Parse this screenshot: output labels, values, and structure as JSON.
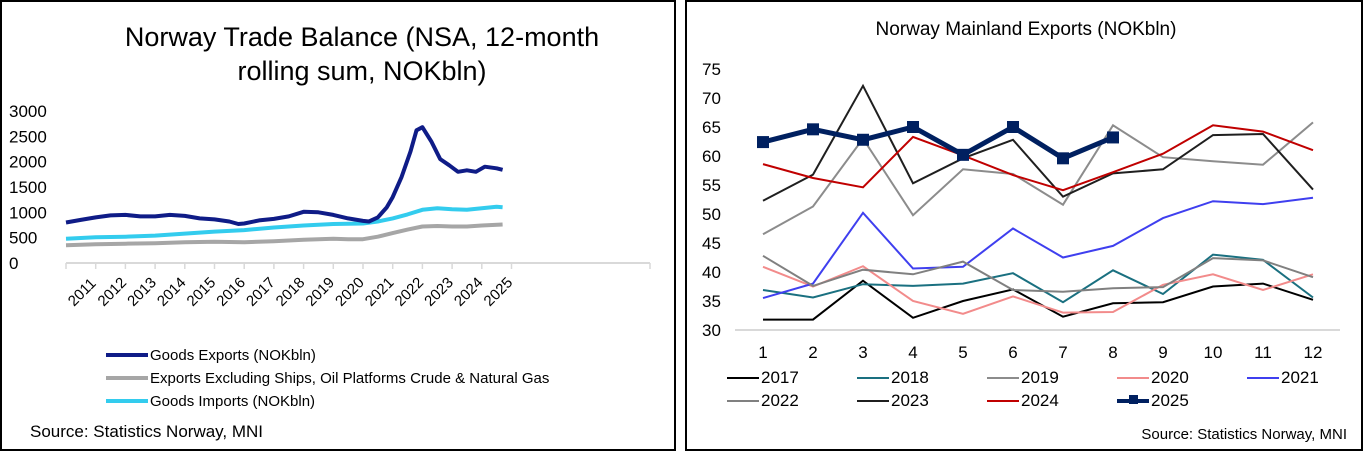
{
  "chart_data": [
    {
      "type": "line",
      "title": "Norway Trade Balance (NSA, 12-month rolling sum, NOKbln)",
      "title_lines": [
        "Norway Trade Balance (NSA, 12-month",
        "rolling sum, NOKbln)"
      ],
      "xlabel": "",
      "ylabel": "",
      "ylim": [
        0,
        3000
      ],
      "yticks": [
        0,
        500,
        1000,
        1500,
        2000,
        2500,
        3000
      ],
      "xlim": [
        2011,
        2026.1
      ],
      "xticks": [
        "2011",
        "2012",
        "2013",
        "2014",
        "2015",
        "2016",
        "2017",
        "2018",
        "2019",
        "2020",
        "2021",
        "2022",
        "2023",
        "2024",
        "2025"
      ],
      "grid": false,
      "legend_position": "bottom",
      "series": [
        {
          "name": "Goods Exports (NOKbln)",
          "color": "#0F1C87",
          "x": [
            2011.0,
            2011.5,
            2012.0,
            2012.5,
            2013.0,
            2013.5,
            2014.0,
            2014.5,
            2015.0,
            2015.5,
            2016.0,
            2016.5,
            2016.8,
            2017.0,
            2017.5,
            2018.0,
            2018.5,
            2019.0,
            2019.5,
            2020.0,
            2020.5,
            2021.0,
            2021.2,
            2021.5,
            2021.8,
            2022.0,
            2022.3,
            2022.6,
            2022.8,
            2023.0,
            2023.3,
            2023.6,
            2023.9,
            2024.2,
            2024.5,
            2024.8,
            2025.1,
            2025.5,
            2025.7
          ],
          "values": [
            800,
            850,
            900,
            940,
            950,
            920,
            920,
            950,
            930,
            880,
            860,
            820,
            770,
            780,
            840,
            870,
            920,
            1010,
            1000,
            950,
            880,
            830,
            820,
            900,
            1100,
            1300,
            1700,
            2200,
            2620,
            2680,
            2400,
            2050,
            1930,
            1800,
            1830,
            1800,
            1900,
            1870,
            1840
          ]
        },
        {
          "name": "Exports Excluding Ships, Oil Platforms Crude & Natural Gas",
          "color": "#A6A6A6",
          "x": [
            2011.0,
            2012.0,
            2013.0,
            2014.0,
            2015.0,
            2016.0,
            2017.0,
            2018.0,
            2019.0,
            2020.0,
            2020.5,
            2021.0,
            2021.5,
            2022.0,
            2022.5,
            2023.0,
            2023.5,
            2024.0,
            2024.5,
            2025.0,
            2025.7
          ],
          "values": [
            350,
            370,
            380,
            390,
            410,
            420,
            410,
            430,
            460,
            480,
            470,
            470,
            520,
            590,
            660,
            720,
            730,
            720,
            720,
            740,
            760
          ]
        },
        {
          "name": "Goods Imports (NOKbln)",
          "color": "#33CCEE",
          "x": [
            2011.0,
            2012.0,
            2013.0,
            2014.0,
            2015.0,
            2016.0,
            2017.0,
            2018.0,
            2019.0,
            2020.0,
            2021.0,
            2021.5,
            2022.0,
            2022.5,
            2023.0,
            2023.5,
            2024.0,
            2024.5,
            2025.0,
            2025.5,
            2025.7
          ],
          "values": [
            480,
            510,
            520,
            540,
            580,
            620,
            650,
            700,
            740,
            770,
            780,
            820,
            880,
            960,
            1050,
            1080,
            1060,
            1050,
            1080,
            1110,
            1100
          ]
        }
      ],
      "source": "Source: Statistics Norway, MNI"
    },
    {
      "type": "line",
      "title": "Norway Mainland Exports (NOKbln)",
      "xlabel": "",
      "ylabel": "",
      "ylim": [
        30,
        75
      ],
      "yticks": [
        30,
        35,
        40,
        45,
        50,
        55,
        60,
        65,
        70,
        75
      ],
      "categories": [
        "1",
        "2",
        "3",
        "4",
        "5",
        "6",
        "7",
        "8",
        "9",
        "10",
        "11",
        "12"
      ],
      "grid": false,
      "legend_position": "bottom",
      "series": [
        {
          "name": "2017",
          "color": "#000000",
          "width": 2,
          "values": [
            31.8,
            31.8,
            38.5,
            32.1,
            35.0,
            37.0,
            32.3,
            34.6,
            34.8,
            37.5,
            38.0,
            35.2
          ]
        },
        {
          "name": "2018",
          "color": "#1A7080",
          "width": 2,
          "values": [
            36.9,
            35.6,
            37.9,
            37.6,
            38.0,
            39.8,
            34.8,
            40.3,
            36.2,
            43.0,
            42.1,
            35.6
          ]
        },
        {
          "name": "2019",
          "color": "#8C8C8C",
          "width": 2,
          "values": [
            46.5,
            51.3,
            63.0,
            49.8,
            57.7,
            56.9,
            51.6,
            65.3,
            59.8,
            59.1,
            58.5,
            65.8
          ]
        },
        {
          "name": "2020",
          "color": "#F28B8B",
          "width": 2,
          "values": [
            40.9,
            37.5,
            41.0,
            35.0,
            32.8,
            35.8,
            33.0,
            33.1,
            37.8,
            39.6,
            36.9,
            39.6
          ]
        },
        {
          "name": "2021",
          "color": "#3F3FEF",
          "width": 2,
          "values": [
            35.5,
            38.0,
            50.2,
            40.6,
            40.9,
            47.5,
            42.5,
            44.5,
            49.3,
            52.2,
            51.7,
            52.8
          ]
        },
        {
          "name": "2022",
          "color": "#808080",
          "width": 2,
          "values": [
            42.8,
            37.6,
            40.4,
            39.6,
            41.8,
            36.9,
            36.6,
            37.2,
            37.4,
            42.4,
            42.0,
            39.1
          ]
        },
        {
          "name": "2023",
          "color": "#1F1F1F",
          "width": 2,
          "values": [
            52.3,
            56.8,
            72.1,
            55.3,
            59.6,
            62.8,
            53.0,
            57.0,
            57.7,
            63.6,
            63.8,
            54.2
          ]
        },
        {
          "name": "2024",
          "color": "#C00000",
          "width": 2,
          "values": [
            58.6,
            56.2,
            54.6,
            63.3,
            60.1,
            56.7,
            54.1,
            57.2,
            60.4,
            65.3,
            64.2,
            61.0
          ]
        },
        {
          "name": "2025",
          "color": "#002060",
          "width": 5,
          "marker": "square",
          "values": [
            62.4,
            64.6,
            62.8,
            65.0,
            60.2,
            65.0,
            59.6,
            63.2
          ]
        }
      ],
      "source": "Source: Statistics Norway,  MNI"
    }
  ]
}
